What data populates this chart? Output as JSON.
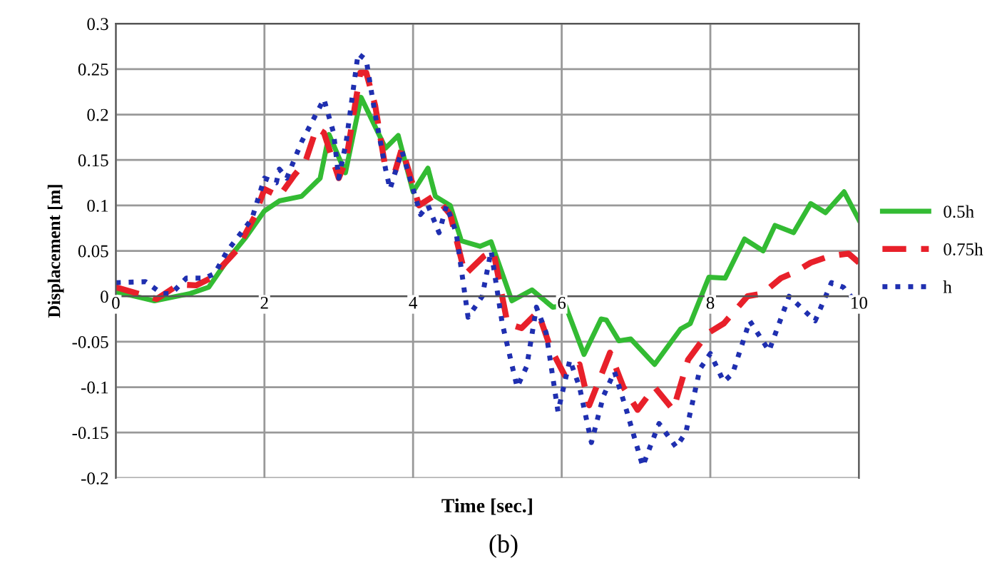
{
  "chart_data": {
    "type": "line",
    "xlabel": "Time [sec.]",
    "ylabel": "Displacement [m]",
    "annotations": [
      "(b)"
    ],
    "xlim": [
      0,
      10
    ],
    "xticks": [
      0,
      2,
      4,
      6,
      8,
      10
    ],
    "ylim": [
      -0.2,
      0.3
    ],
    "yticks": [
      -0.2,
      -0.15,
      -0.1,
      -0.05,
      0,
      0.05,
      0.1,
      0.15,
      0.2,
      0.25,
      0.3
    ],
    "grid": true,
    "legend": "right",
    "marker": "none",
    "series": [
      {
        "name": "0.5h",
        "color": "#33bb33",
        "line_style": "solid",
        "x": [
          0,
          0.52,
          1.0,
          1.25,
          1.52,
          1.75,
          2.0,
          2.2,
          2.5,
          2.75,
          2.87,
          3.09,
          3.3,
          3.63,
          3.8,
          4.0,
          4.2,
          4.3,
          4.5,
          4.65,
          4.9,
          5.05,
          5.33,
          5.6,
          5.88,
          6.05,
          6.3,
          6.53,
          6.6,
          6.77,
          6.93,
          7.25,
          7.6,
          7.73,
          7.98,
          8.2,
          8.46,
          8.71,
          8.87,
          9.12,
          9.35,
          9.55,
          9.8,
          10
        ],
        "values": [
          0.005,
          -0.005,
          0.003,
          0.01,
          0.042,
          0.065,
          0.094,
          0.105,
          0.11,
          0.13,
          0.178,
          0.136,
          0.219,
          0.163,
          0.177,
          0.115,
          0.141,
          0.11,
          0.1,
          0.061,
          0.055,
          0.06,
          -0.005,
          0.007,
          -0.012,
          -0.01,
          -0.064,
          -0.025,
          -0.026,
          -0.049,
          -0.047,
          -0.075,
          -0.036,
          -0.03,
          0.021,
          0.02,
          0.063,
          0.05,
          0.078,
          0.07,
          0.102,
          0.092,
          0.115,
          0.084
        ]
      },
      {
        "name": "0.75h",
        "color": "#e8202a",
        "line_style": "dashed",
        "x": [
          0,
          0.55,
          0.85,
          1.08,
          1.28,
          1.62,
          1.87,
          2.0,
          2.2,
          2.4,
          2.55,
          2.7,
          2.8,
          3.0,
          3.1,
          3.29,
          3.37,
          3.49,
          3.63,
          3.76,
          3.85,
          4.08,
          4.27,
          4.4,
          4.5,
          4.7,
          4.95,
          5.08,
          5.27,
          5.46,
          5.68,
          5.85,
          6.04,
          6.24,
          6.37,
          6.53,
          6.65,
          6.83,
          7.02,
          7.25,
          7.5,
          7.7,
          7.96,
          8.18,
          8.5,
          8.7,
          8.95,
          9.15,
          9.35,
          9.6,
          9.86,
          10
        ],
        "values": [
          0.01,
          -0.003,
          0.013,
          0.012,
          0.02,
          0.05,
          0.088,
          0.118,
          0.11,
          0.133,
          0.148,
          0.185,
          0.18,
          0.13,
          0.15,
          0.246,
          0.246,
          0.21,
          0.14,
          0.138,
          0.163,
          0.1,
          0.11,
          0.1,
          0.09,
          0.024,
          0.044,
          0.05,
          -0.03,
          -0.035,
          -0.017,
          -0.057,
          -0.087,
          -0.075,
          -0.12,
          -0.087,
          -0.062,
          -0.1,
          -0.125,
          -0.1,
          -0.125,
          -0.07,
          -0.041,
          -0.03,
          0,
          0.003,
          0.02,
          0.027,
          0.037,
          0.044,
          0.047,
          0.037
        ]
      },
      {
        "name": "h",
        "color": "#1f2fb0",
        "line_style": "dotted",
        "x": [
          0,
          0.4,
          0.62,
          0.75,
          0.95,
          1.2,
          1.33,
          1.5,
          1.83,
          2.0,
          2.16,
          2.2,
          2.3,
          2.5,
          2.8,
          2.93,
          3.0,
          3.1,
          3.26,
          3.37,
          3.49,
          3.63,
          3.69,
          3.85,
          4.1,
          4.2,
          4.35,
          4.45,
          4.58,
          4.74,
          4.93,
          5.05,
          5.2,
          5.4,
          5.53,
          5.66,
          5.79,
          5.95,
          6.11,
          6.24,
          6.4,
          6.56,
          6.71,
          6.87,
          7.09,
          7.31,
          7.54,
          7.67,
          7.86,
          8.0,
          8.18,
          8.3,
          8.53,
          8.79,
          9.06,
          9.41,
          9.63,
          9.79,
          9.94,
          10
        ],
        "values": [
          0.015,
          0.016,
          0.003,
          0.003,
          0.02,
          0.02,
          0.025,
          0.05,
          0.085,
          0.13,
          0.125,
          0.14,
          0.13,
          0.17,
          0.217,
          0.18,
          0.13,
          0.17,
          0.267,
          0.26,
          0.2,
          0.14,
          0.118,
          0.16,
          0.09,
          0.1,
          0.07,
          0.1,
          0.07,
          -0.023,
          0,
          0.05,
          -0.03,
          -0.1,
          -0.077,
          -0.012,
          -0.04,
          -0.127,
          -0.07,
          -0.1,
          -0.161,
          -0.11,
          -0.083,
          -0.125,
          -0.187,
          -0.14,
          -0.166,
          -0.15,
          -0.08,
          -0.063,
          -0.094,
          -0.085,
          -0.027,
          -0.06,
          0,
          -0.027,
          0.015,
          0.01,
          -0.005,
          -0.01
        ]
      }
    ]
  }
}
